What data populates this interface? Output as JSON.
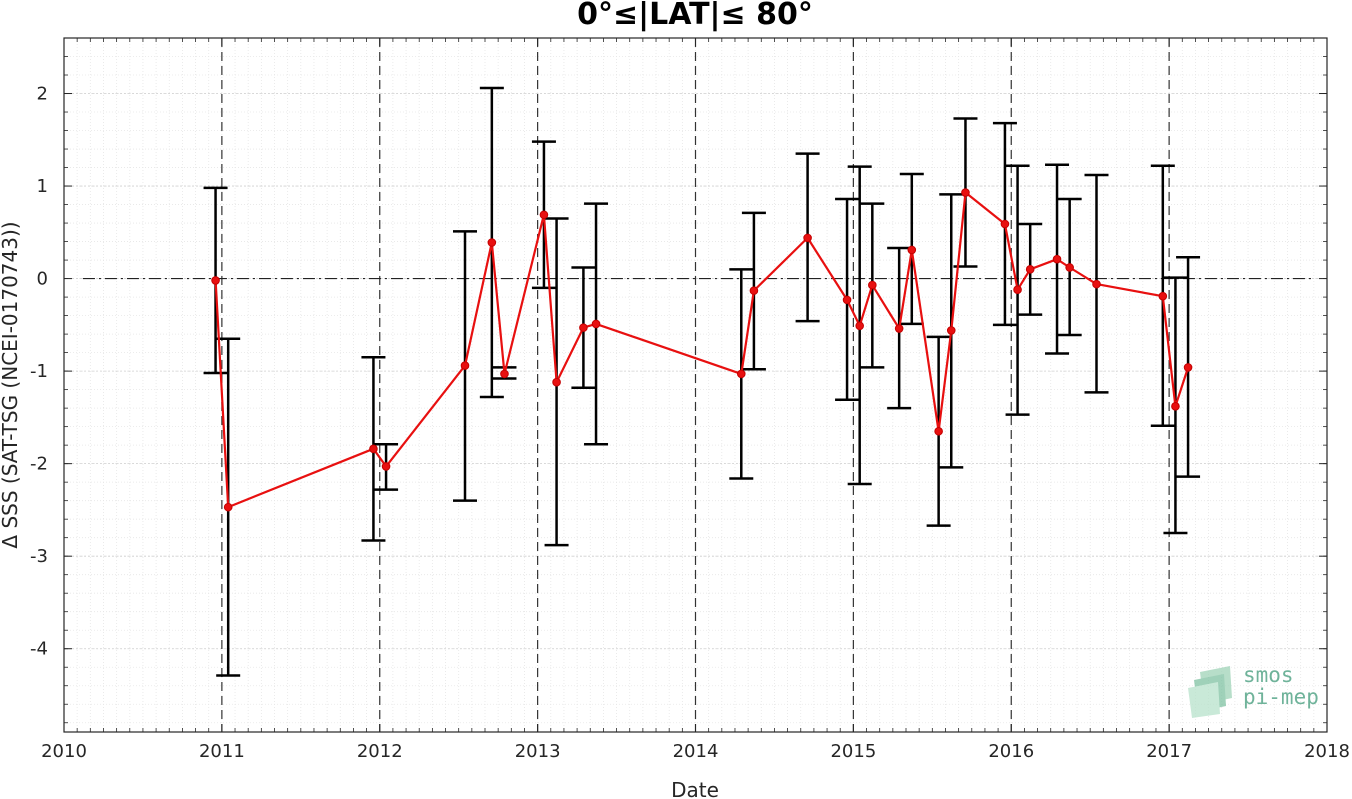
{
  "chart_data": {
    "type": "line",
    "title": "0°≤|LAT|≤ 80°",
    "xlabel": "Date",
    "ylabel": "Δ SSS (SAT-TSG (NCEI-0170743))",
    "xlim": [
      2010,
      2018
    ],
    "ylim": [
      -4.9,
      2.6
    ],
    "xticks": [
      2010,
      2011,
      2012,
      2013,
      2014,
      2015,
      2016,
      2017,
      2018
    ],
    "xtick_labels": [
      "2010",
      "2011",
      "2012",
      "2013",
      "2014",
      "2015",
      "2016",
      "2017",
      "2018"
    ],
    "yticks": [
      2,
      1,
      0,
      -1,
      -2,
      -3,
      -4
    ],
    "ytick_labels": [
      "2",
      "1",
      "0",
      "-1",
      "-2",
      "-3",
      "-4"
    ],
    "grid": true,
    "zero_line": true,
    "year_lines": [
      2011,
      2012,
      2013,
      2014,
      2015,
      2016,
      2017
    ],
    "line_color": "#e81010",
    "errorbar_color": "#000000",
    "series": [
      {
        "x": [
          2010.96,
          2011.04,
          2011.96,
          2012.04,
          2012.54,
          2012.71,
          2012.79,
          2013.04,
          2013.12,
          2013.29,
          2013.37,
          2014.29,
          2014.37,
          2014.71,
          2014.96,
          2015.04,
          2015.12,
          2015.29,
          2015.37,
          2015.54,
          2015.62,
          2015.71,
          2015.96,
          2016.04,
          2016.12,
          2016.29,
          2016.37,
          2016.54,
          2016.96,
          2017.04,
          2017.12
        ],
        "y": [
          -0.02,
          -2.47,
          -1.84,
          -2.03,
          -0.94,
          0.39,
          -1.03,
          0.69,
          -1.12,
          -0.53,
          -0.49,
          -1.03,
          -0.13,
          0.44,
          -0.23,
          -0.51,
          -0.07,
          -0.54,
          0.31,
          -1.65,
          -0.56,
          0.93,
          0.59,
          -0.12,
          0.1,
          0.21,
          0.12,
          -0.06,
          -0.19,
          -1.38,
          -0.96
        ],
        "err_low": [
          -1.02,
          -4.29,
          -2.83,
          -2.28,
          -2.4,
          -1.28,
          -1.08,
          -0.1,
          -2.88,
          -1.18,
          -1.79,
          -2.16,
          -0.98,
          -0.46,
          -1.31,
          -2.22,
          -0.96,
          -1.4,
          -0.49,
          -2.67,
          -2.04,
          0.13,
          -0.5,
          -1.47,
          -0.39,
          -0.81,
          -0.61,
          -1.23,
          -1.59,
          -2.75,
          -2.14
        ],
        "err_high": [
          0.98,
          -0.65,
          -0.85,
          -1.79,
          0.51,
          2.06,
          -0.96,
          1.48,
          0.65,
          0.12,
          0.81,
          0.1,
          0.71,
          1.35,
          0.86,
          1.21,
          0.81,
          0.33,
          1.13,
          -0.63,
          0.91,
          1.73,
          1.68,
          1.22,
          0.59,
          1.23,
          0.86,
          1.12,
          1.22,
          0.01,
          0.23
        ]
      }
    ]
  },
  "watermark": {
    "line1": "smos",
    "line2": "pi-mep",
    "color": "#6fb39a"
  }
}
